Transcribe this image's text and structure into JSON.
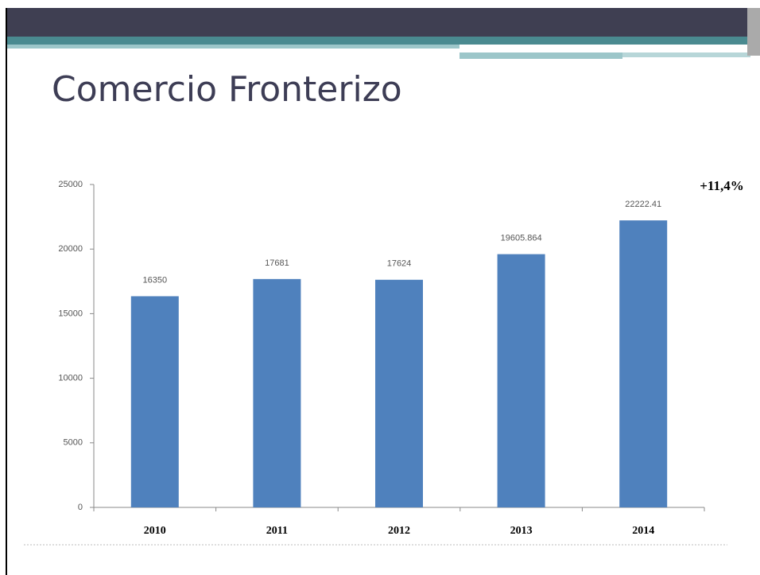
{
  "chart_data": {
    "type": "bar",
    "title": "Comercio Fronterizo",
    "categories": [
      "2010",
      "2011",
      "2012",
      "2013",
      "2014"
    ],
    "values": [
      16350,
      17681,
      17624,
      19605.864,
      22222.41
    ],
    "color": "#4f81bd",
    "ylim": [
      0,
      25000
    ],
    "yticks": [
      0,
      5000,
      10000,
      15000,
      20000,
      25000
    ],
    "annotation": "+11,4%"
  }
}
